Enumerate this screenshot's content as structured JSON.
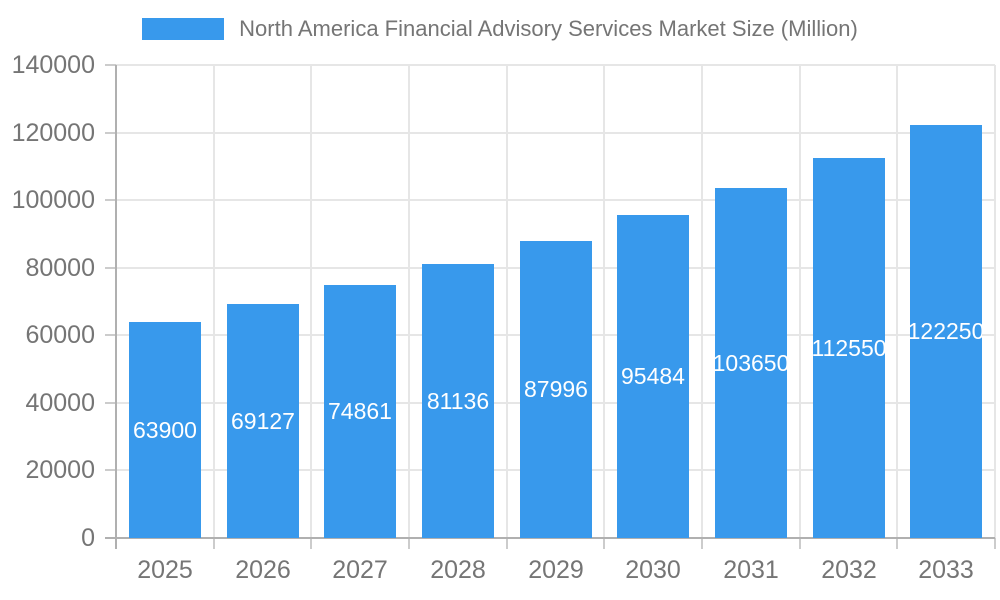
{
  "chart_data": {
    "type": "bar",
    "title": "North America Financial Advisory Services Market Size (Million)",
    "legend_position": "top",
    "categories": [
      "2025",
      "2026",
      "2027",
      "2028",
      "2029",
      "2030",
      "2031",
      "2032",
      "2033"
    ],
    "values": [
      63900,
      69127,
      74861,
      81136,
      87996,
      95484,
      103650,
      112550,
      122250
    ],
    "bar_value_labels": [
      "63900",
      "69127",
      "74861",
      "81136",
      "87996",
      "95484",
      "103650",
      "112550",
      "122250"
    ],
    "xlabel": "",
    "ylabel": "",
    "ylim": [
      0,
      140000
    ],
    "yticks": [
      0,
      20000,
      40000,
      60000,
      80000,
      100000,
      120000,
      140000
    ],
    "grid": true,
    "colors": {
      "bar": "#3899ec",
      "bar_label": "#ffffff",
      "axis_text": "#757575",
      "gridline": "#e6e6e6",
      "axis_line": "#b0b0b0",
      "tick_mark": "#cccccc",
      "background": "#ffffff"
    }
  }
}
